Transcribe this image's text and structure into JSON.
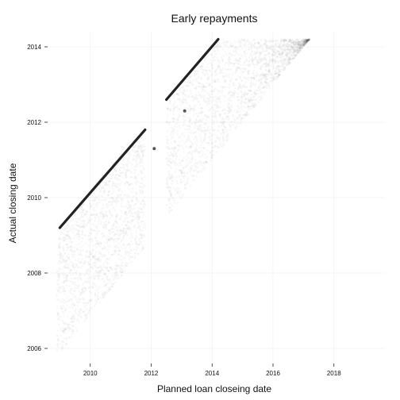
{
  "chart_data": {
    "type": "scatter",
    "title": "Early repayments",
    "xlabel": "Planned loan closeing date",
    "ylabel": "Actual closing date",
    "xlim": [
      2008.6,
      2019.7
    ],
    "ylim": [
      2005.6,
      2014.4
    ],
    "x_ticks": [
      2010,
      2012,
      2014,
      2016,
      2018
    ],
    "y_ticks": [
      2006,
      2008,
      2010,
      2012,
      2014
    ],
    "x_tick_labels": [
      "2010",
      "2012",
      "2014",
      "2016",
      "2018"
    ],
    "y_tick_labels": [
      "2006",
      "2008",
      "2010",
      "2012",
      "2014"
    ],
    "grid": true,
    "point_color": "#000000",
    "point_opacity": 0.03,
    "diagonal_series": {
      "name": "",
      "points": [
        [
          2009.0,
          2009.2
        ],
        [
          2011.8,
          2011.8
        ],
        [
          2012.5,
          2012.6
        ],
        [
          2014.2,
          2014.2
        ]
      ]
    },
    "density_regions": [
      {
        "x": [
          2008.9,
          2011.8
        ],
        "y": [
          2005.9,
          2011.8
        ],
        "density": "high"
      },
      {
        "x": [
          2012.5,
          2017.2
        ],
        "y": [
          2009.6,
          2014.2
        ],
        "density": "high"
      },
      {
        "x": [
          2017.0,
          2019.2
        ],
        "y": [
          2012.4,
          2014.2
        ],
        "density": "low"
      }
    ],
    "outliers": [
      [
        2012.1,
        2011.3
      ],
      [
        2013.1,
        2012.3
      ]
    ]
  }
}
